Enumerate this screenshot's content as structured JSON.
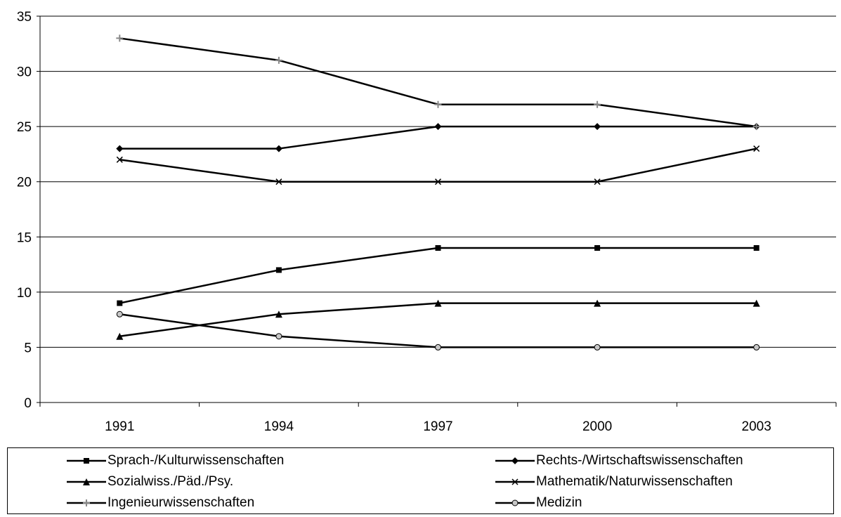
{
  "chart_data": {
    "type": "line",
    "categories": [
      "1991",
      "1994",
      "1997",
      "2000",
      "2003"
    ],
    "ylim": [
      0,
      35
    ],
    "yticks": [
      0,
      5,
      10,
      15,
      20,
      25,
      30,
      35
    ],
    "grid": true,
    "legend_position": "bottom",
    "series": [
      {
        "name": "Sprach-/Kulturwissenschaften",
        "marker": "square",
        "values": [
          9,
          12,
          14,
          14,
          14
        ]
      },
      {
        "name": "Rechts-/Wirtschaftswissenschaften",
        "marker": "diamond",
        "values": [
          23,
          23,
          25,
          25,
          25
        ]
      },
      {
        "name": "Sozialwiss./Päd./Psy.",
        "marker": "triangle",
        "values": [
          6,
          8,
          9,
          9,
          9
        ]
      },
      {
        "name": "Mathematik/Naturwissenschaften",
        "marker": "x",
        "values": [
          22,
          20,
          20,
          20,
          23
        ]
      },
      {
        "name": "Ingenieurwissenschaften",
        "marker": "plus",
        "values": [
          33,
          31,
          27,
          27,
          25
        ]
      },
      {
        "name": "Medizin",
        "marker": "circle",
        "values": [
          8,
          6,
          5,
          5,
          5
        ]
      }
    ]
  }
}
